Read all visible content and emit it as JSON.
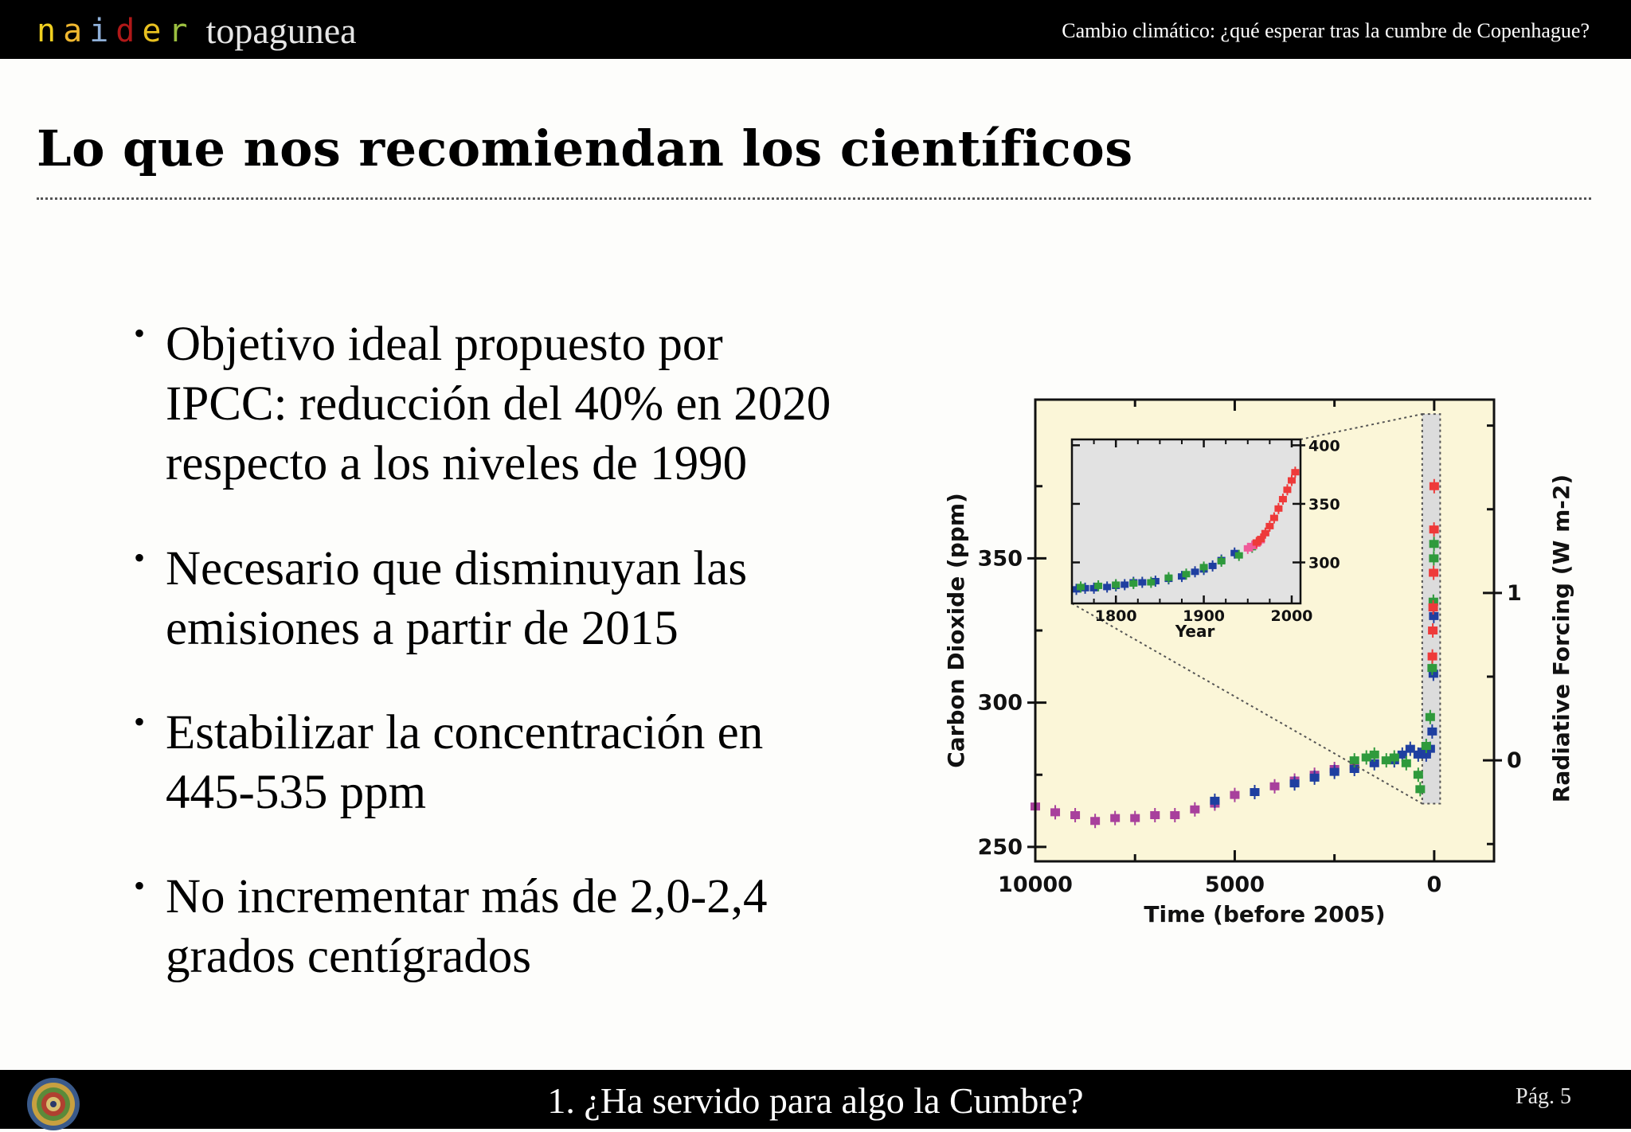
{
  "header": {
    "logo_letters": [
      {
        "char": "n",
        "color": "#f0d020"
      },
      {
        "char": "a",
        "color": "#f0b830"
      },
      {
        "char": "i",
        "color": "#8fb0d8"
      },
      {
        "char": "d",
        "color": "#b01818"
      },
      {
        "char": "e",
        "color": "#e8c020"
      },
      {
        "char": "r",
        "color": "#9bbf40"
      }
    ],
    "logo_sub": "topagunea",
    "title": "Cambio climático: ¿qué esperar tras la cumbre de Copenhague?"
  },
  "slide": {
    "title": "Lo que nos recomiendan los científicos",
    "bullets": [
      {
        "lines": [
          "Objetivo ideal propuesto por",
          "IPCC: reducción del 40% en 2020",
          "respecto a los niveles de 1990"
        ]
      },
      {
        "lines": [
          "Necesario que disminuyan las",
          "emisiones a partir de 2015"
        ]
      },
      {
        "lines": [
          "Estabilizar la concentración en",
          "445-535 ppm"
        ]
      },
      {
        "lines": [
          "No incrementar más de 2,0-2,4",
          "grados centígrados"
        ]
      }
    ]
  },
  "chart_data": {
    "type": "scatter",
    "xlabel": "Time (before 2005)",
    "ylabel": "Carbon Dioxide (ppm)",
    "ylabel_right": "Radiative Forcing (W m-2)",
    "xlim": [
      10000,
      -1500
    ],
    "ylim": [
      245,
      405
    ],
    "x_ticks": [
      "10000",
      "5000",
      "0"
    ],
    "y_ticks": [
      "250",
      "300",
      "350"
    ],
    "y_ticks_right": [
      "0",
      "1"
    ],
    "background": "#fbf6d8",
    "series": [
      {
        "color": "#a8409c",
        "points": [
          [
            10000,
            264
          ],
          [
            9500,
            262
          ],
          [
            9000,
            261
          ],
          [
            8500,
            259
          ],
          [
            8000,
            260
          ],
          [
            7500,
            260
          ],
          [
            7000,
            261
          ],
          [
            6500,
            261
          ],
          [
            6000,
            263
          ],
          [
            5500,
            265
          ],
          [
            5000,
            268
          ],
          [
            4500,
            269
          ],
          [
            4000,
            271
          ],
          [
            3500,
            273
          ],
          [
            3000,
            275
          ],
          [
            2500,
            277
          ],
          [
            2000,
            278
          ]
        ]
      },
      {
        "color": "#1f3fa0",
        "points": [
          [
            5500,
            266
          ],
          [
            4500,
            269
          ],
          [
            3500,
            272
          ],
          [
            3000,
            274
          ],
          [
            2500,
            276
          ],
          [
            2000,
            277
          ],
          [
            1500,
            279
          ],
          [
            1000,
            280
          ],
          [
            800,
            282
          ],
          [
            600,
            284
          ],
          [
            400,
            282
          ],
          [
            300,
            283
          ],
          [
            200,
            282
          ],
          [
            100,
            284
          ],
          [
            50,
            290
          ],
          [
            20,
            310
          ],
          [
            10,
            330
          ]
        ]
      },
      {
        "color": "#2f9a3c",
        "points": [
          [
            2000,
            280
          ],
          [
            1700,
            281
          ],
          [
            1500,
            282
          ],
          [
            1200,
            280
          ],
          [
            1000,
            281
          ],
          [
            700,
            279
          ],
          [
            400,
            275
          ],
          [
            350,
            270
          ],
          [
            200,
            285
          ],
          [
            100,
            295
          ],
          [
            50,
            312
          ],
          [
            20,
            335
          ],
          [
            10,
            350
          ],
          [
            5,
            355
          ]
        ]
      },
      {
        "color": "#ee3a3a",
        "points": [
          [
            45,
            316
          ],
          [
            35,
            325
          ],
          [
            25,
            333
          ],
          [
            15,
            345
          ],
          [
            5,
            360
          ],
          [
            0,
            375
          ]
        ]
      }
    ]
  },
  "inset_chart": {
    "type": "scatter",
    "xlabel": "Year",
    "x_ticks": [
      "1800",
      "1900",
      "2000"
    ],
    "y_ticks": [
      "300",
      "350",
      "400"
    ],
    "xlim": [
      1750,
      2010
    ],
    "ylim": [
      265,
      405
    ],
    "series": [
      {
        "color": "#1f3fa0",
        "points": [
          [
            1755,
            277
          ],
          [
            1765,
            278
          ],
          [
            1775,
            278
          ],
          [
            1790,
            279
          ],
          [
            1800,
            280
          ],
          [
            1810,
            281
          ],
          [
            1820,
            283
          ],
          [
            1830,
            283
          ],
          [
            1845,
            284
          ],
          [
            1860,
            286
          ],
          [
            1875,
            288
          ],
          [
            1890,
            292
          ],
          [
            1900,
            294
          ],
          [
            1910,
            297
          ],
          [
            1920,
            302
          ],
          [
            1935,
            308
          ]
        ]
      },
      {
        "color": "#2f9a3c",
        "points": [
          [
            1760,
            279
          ],
          [
            1780,
            280
          ],
          [
            1800,
            281
          ],
          [
            1820,
            282
          ],
          [
            1840,
            283
          ],
          [
            1860,
            287
          ],
          [
            1880,
            290
          ],
          [
            1900,
            296
          ],
          [
            1920,
            301
          ],
          [
            1940,
            306
          ],
          [
            1955,
            313
          ]
        ]
      },
      {
        "color": "#f05a9a",
        "points": [
          [
            1950,
            312
          ],
          [
            1955,
            314
          ],
          [
            1960,
            316
          ],
          [
            1965,
            319
          ]
        ]
      },
      {
        "color": "#ee3a3a",
        "points": [
          [
            1960,
            317
          ],
          [
            1965,
            320
          ],
          [
            1970,
            325
          ],
          [
            1975,
            331
          ],
          [
            1980,
            338
          ],
          [
            1985,
            346
          ],
          [
            1990,
            354
          ],
          [
            1995,
            362
          ],
          [
            2000,
            370
          ],
          [
            2004,
            377
          ]
        ]
      }
    ]
  },
  "footer": {
    "title": "1. ¿Ha servido para algo la Cumbre?",
    "page": "Pág. 5"
  }
}
